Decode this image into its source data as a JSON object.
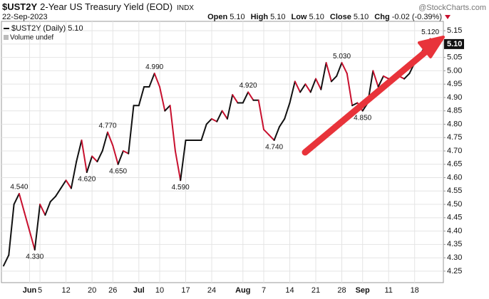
{
  "header": {
    "symbol": "$UST2Y",
    "name": "2-Year US Treasury Yield (EOD)",
    "exchange": "INDX",
    "date": "22-Sep-2023",
    "watermark": "@StockCharts.com",
    "quote": [
      {
        "label": "Open",
        "value": "5.10"
      },
      {
        "label": "High",
        "value": "5.10"
      },
      {
        "label": "Low",
        "value": "5.10"
      },
      {
        "label": "Close",
        "value": "5.10"
      },
      {
        "label": "Chg",
        "value": "-0.02 (-0.39%)"
      }
    ]
  },
  "chart_data": {
    "type": "line",
    "legend": [
      "$UST2Y (Daily) 5.10",
      "Volume undef"
    ],
    "up_color": "#111111",
    "down_color": "#c8102e",
    "last_label": "5.10",
    "categories": [
      null,
      null,
      null,
      null,
      null,
      "Jun",
      null,
      "5",
      null,
      null,
      null,
      null,
      "12",
      null,
      null,
      null,
      null,
      "20",
      null,
      null,
      null,
      "26",
      null,
      null,
      null,
      null,
      "Jul",
      null,
      null,
      null,
      "10",
      null,
      null,
      null,
      null,
      "17",
      null,
      null,
      null,
      null,
      "24",
      null,
      null,
      null,
      null,
      null,
      "Aug",
      null,
      null,
      null,
      "7",
      null,
      null,
      null,
      null,
      "14",
      null,
      null,
      null,
      null,
      "21",
      null,
      null,
      null,
      null,
      "28",
      null,
      null,
      null,
      "Sep",
      null,
      null,
      null,
      null,
      "11",
      null,
      null,
      null,
      null,
      "18",
      null,
      null,
      null,
      null
    ],
    "values": [
      4.27,
      4.31,
      4.5,
      4.54,
      4.47,
      4.4,
      4.33,
      4.5,
      4.46,
      4.51,
      4.53,
      4.56,
      4.59,
      4.56,
      4.66,
      4.74,
      4.62,
      4.68,
      4.66,
      4.7,
      4.77,
      4.72,
      4.65,
      4.7,
      4.69,
      4.87,
      4.87,
      4.94,
      4.94,
      4.99,
      4.94,
      4.85,
      4.87,
      4.7,
      4.59,
      4.74,
      4.74,
      4.74,
      4.74,
      4.8,
      4.82,
      4.81,
      4.85,
      4.82,
      4.91,
      4.88,
      4.88,
      4.92,
      4.89,
      4.89,
      4.78,
      4.76,
      4.74,
      4.79,
      4.82,
      4.88,
      4.96,
      4.92,
      4.95,
      4.92,
      4.97,
      4.93,
      5.03,
      4.96,
      4.98,
      5.03,
      4.99,
      4.87,
      4.88,
      4.85,
      4.88,
      5.0,
      4.94,
      4.98,
      4.97,
      4.97,
      4.98,
      4.97,
      4.99,
      5.03,
      5.06,
      5.09,
      5.12,
      5.1
    ],
    "value_labels": [
      null,
      null,
      null,
      "4.540",
      null,
      null,
      "4.330",
      null,
      null,
      null,
      null,
      null,
      null,
      null,
      null,
      null,
      "4.620",
      null,
      null,
      null,
      "4.770",
      null,
      "4.650",
      null,
      null,
      null,
      null,
      null,
      null,
      "4.990",
      null,
      null,
      null,
      null,
      "4.590",
      null,
      null,
      null,
      null,
      null,
      null,
      null,
      null,
      null,
      null,
      null,
      null,
      "4.920",
      null,
      null,
      null,
      null,
      "4.740",
      null,
      null,
      null,
      null,
      null,
      null,
      null,
      null,
      null,
      null,
      null,
      null,
      "5.030",
      null,
      null,
      null,
      "4.850",
      null,
      null,
      null,
      null,
      null,
      null,
      null,
      null,
      null,
      null,
      null,
      null,
      "5.120",
      null
    ],
    "ylim": [
      4.207,
      5.185
    ],
    "yticks": [
      4.25,
      {
        "value": 4.3,
        "label": "4.30"
      },
      4.35,
      {
        "value": 4.4,
        "label": "4.40"
      },
      4.45,
      {
        "value": 4.5,
        "label": "4.50"
      },
      4.55,
      {
        "value": 4.6,
        "label": "4.60"
      },
      4.65,
      {
        "value": 4.7,
        "label": "4.70"
      },
      4.75,
      {
        "value": 4.8,
        "label": "4.80"
      },
      4.85,
      {
        "value": 4.9,
        "label": "4.90"
      },
      4.95,
      {
        "value": 5.0,
        "label": "5.00"
      },
      5.05,
      {
        "value": 5.1,
        "label": "5.10"
      },
      5.15
    ],
    "grid": true
  }
}
